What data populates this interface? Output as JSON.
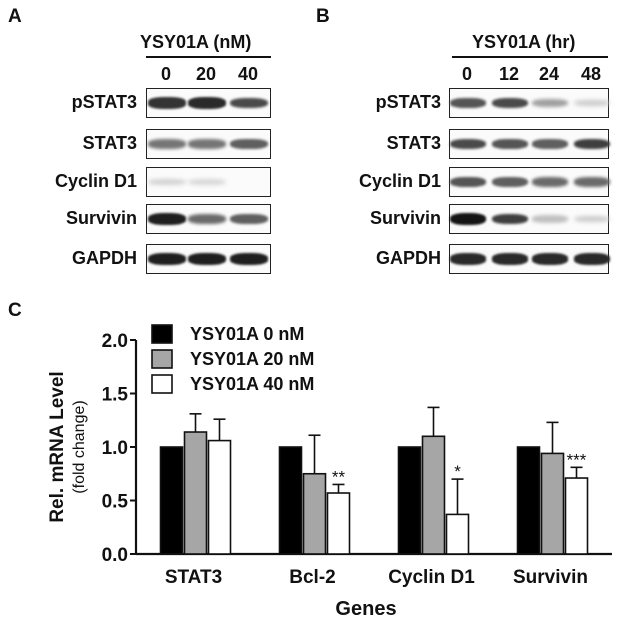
{
  "panels": {
    "a": {
      "letter": "A",
      "treatment": "YSY01A (nM)",
      "lanes": [
        "0",
        "20",
        "40"
      ]
    },
    "b": {
      "letter": "B",
      "treatment": "YSY01A (hr)",
      "lanes": [
        "0",
        "12",
        "24",
        "48"
      ]
    },
    "c": {
      "letter": "C"
    }
  },
  "blot_rows": [
    "pSTAT3",
    "STAT3",
    "Cyclin D1",
    "Survivin",
    "GAPDH"
  ],
  "blot_intensity": {
    "a": {
      "pSTAT3": [
        0.85,
        0.9,
        0.75
      ],
      "STAT3": [
        0.55,
        0.55,
        0.65
      ],
      "Cyclin D1": [
        0.12,
        0.1,
        0.0
      ],
      "Survivin": [
        0.95,
        0.6,
        0.65
      ],
      "GAPDH": [
        0.95,
        0.95,
        0.95
      ]
    },
    "b": {
      "pSTAT3": [
        0.7,
        0.75,
        0.35,
        0.15
      ],
      "STAT3": [
        0.75,
        0.7,
        0.65,
        0.8
      ],
      "Cyclin D1": [
        0.7,
        0.65,
        0.6,
        0.6
      ],
      "Survivin": [
        1.0,
        0.8,
        0.2,
        0.15
      ],
      "GAPDH": [
        0.9,
        0.9,
        0.9,
        0.9
      ]
    }
  },
  "chart_data": {
    "type": "bar",
    "categories": [
      "STAT3",
      "Bcl-2",
      "Cyclin D1",
      "Survivin"
    ],
    "series": [
      {
        "name": "YSY01A 0 nM",
        "color": "#000000",
        "values": [
          1.0,
          1.0,
          1.0,
          1.0
        ],
        "errors": [
          0,
          0,
          0,
          0
        ],
        "significance": [
          "",
          "",
          "",
          ""
        ]
      },
      {
        "name": "YSY01A 20 nM",
        "color": "#a6a6a6",
        "values": [
          1.14,
          0.75,
          1.1,
          0.94
        ],
        "errors": [
          0.17,
          0.36,
          0.27,
          0.29
        ],
        "significance": [
          "",
          "",
          "",
          ""
        ]
      },
      {
        "name": "YSY01A 40 nM",
        "color": "#ffffff",
        "values": [
          1.06,
          0.57,
          0.37,
          0.71
        ],
        "errors": [
          0.2,
          0.08,
          0.33,
          0.1
        ],
        "significance": [
          "",
          "**",
          "*",
          "***"
        ]
      }
    ],
    "ylim": [
      0,
      2.0
    ],
    "yticks": [
      "0.0",
      "0.5",
      "1.0",
      "1.5",
      "2.0"
    ],
    "ylabel": "Rel. mRNA Level",
    "ylabel_sub": "(fold change)",
    "xlabel": "Genes",
    "legend_position": "top-left"
  }
}
